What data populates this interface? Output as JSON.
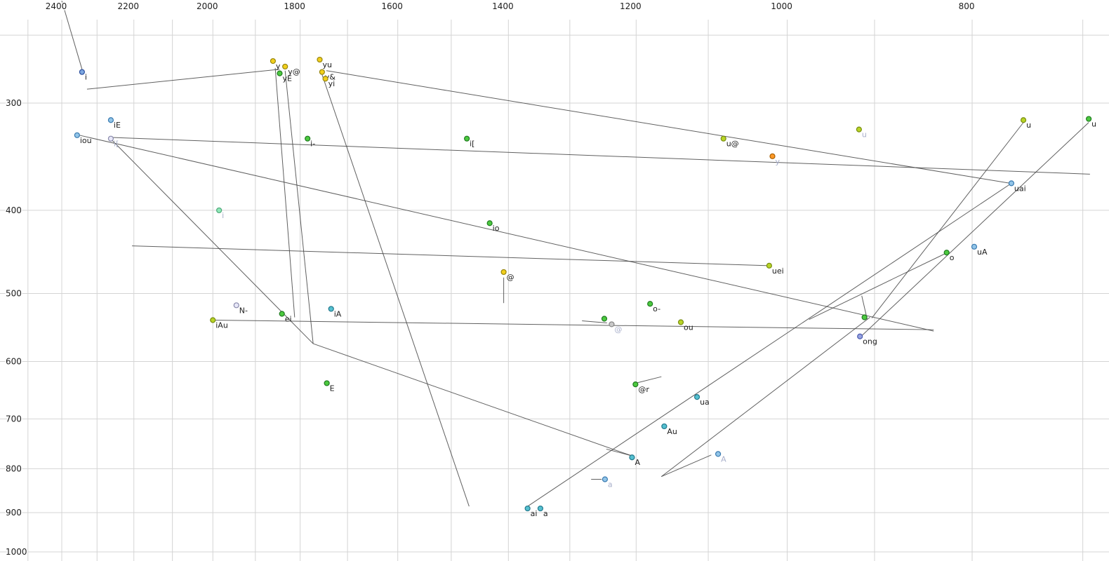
{
  "chart_data": {
    "type": "scatter",
    "title": "",
    "xlabel": "",
    "ylabel": "",
    "x_axis": {
      "scale": "log",
      "reversed": true,
      "tick_labels": [
        2400,
        2200,
        2000,
        1800,
        1600,
        1400,
        1200,
        1000,
        800
      ],
      "gridlines": [
        2500,
        2400,
        2300,
        2200,
        2100,
        2000,
        1900,
        1800,
        1700,
        1600,
        1500,
        1400,
        1300,
        1200,
        1100,
        1000,
        900,
        800,
        700
      ]
    },
    "y_axis": {
      "scale": "log",
      "reversed": false,
      "tick_labels": [
        300,
        400,
        500,
        600,
        700,
        800,
        900,
        1000
      ],
      "gridlines": [
        250,
        300,
        400,
        500,
        600,
        700,
        800,
        900,
        1000
      ]
    },
    "grid": true,
    "legend": "none",
    "points": [
      {
        "label": "i",
        "f2": 2342,
        "f1": 276,
        "color": "blue",
        "faded": false
      },
      {
        "label": "y",
        "f2": 1860,
        "f1": 268,
        "color": "yellow",
        "faded": false
      },
      {
        "label": "y@",
        "f2": 1833,
        "f1": 272,
        "color": "yellow",
        "faded": false
      },
      {
        "label": "yE",
        "f2": 1845,
        "f1": 277,
        "color": "green",
        "faded": false
      },
      {
        "label": "yu",
        "f2": 1758,
        "f1": 267,
        "color": "yellow",
        "faded": false
      },
      {
        "label": "y&",
        "f2": 1753,
        "f1": 276,
        "color": "yellow",
        "faded": false
      },
      {
        "label": "yi",
        "f2": 1746,
        "f1": 281,
        "color": "yellow",
        "faded": false
      },
      {
        "label": "iE",
        "f2": 2262,
        "f1": 314,
        "color": "lightblue",
        "faded": false
      },
      {
        "label": "iou",
        "f2": 2356,
        "f1": 327,
        "color": "lightblue",
        "faded": false
      },
      {
        "label": "i[",
        "f2": 2262,
        "f1": 330,
        "color": "palewhite",
        "faded": true
      },
      {
        "label": "i-",
        "f2": 1784,
        "f1": 330,
        "color": "green",
        "faded": false
      },
      {
        "label": "i[",
        "f2": 1472,
        "f1": 330,
        "color": "green",
        "faded": false
      },
      {
        "label": "u@",
        "f2": 1080,
        "f1": 330,
        "color": "yellowgreen",
        "faded": false
      },
      {
        "label": "y",
        "f2": 1018,
        "f1": 346,
        "color": "orange",
        "faded": true
      },
      {
        "label": "u",
        "f2": 917,
        "f1": 322,
        "color": "yellowgreen",
        "faded": true
      },
      {
        "label": "u",
        "f2": 752,
        "f1": 314,
        "color": "yellowgreen",
        "faded": false
      },
      {
        "label": "u",
        "f2": 695,
        "f1": 313,
        "color": "green",
        "faded": false
      },
      {
        "label": "uai",
        "f2": 763,
        "f1": 372,
        "color": "lightblue",
        "faded": false
      },
      {
        "label": "i",
        "f2": 1985,
        "f1": 400,
        "color": "palegreen",
        "faded": true
      },
      {
        "label": "io",
        "f2": 1432,
        "f1": 414,
        "color": "green",
        "faded": false
      },
      {
        "label": "@",
        "f2": 1408,
        "f1": 472,
        "color": "yellow",
        "faded": false
      },
      {
        "label": "uei",
        "f2": 1022,
        "f1": 464,
        "color": "yellowgreen",
        "faded": false
      },
      {
        "label": "o",
        "f2": 825,
        "f1": 448,
        "color": "green",
        "faded": false
      },
      {
        "label": "uA",
        "f2": 798,
        "f1": 441,
        "color": "lightblue",
        "faded": false
      },
      {
        "label": "N-",
        "f2": 1944,
        "f1": 516,
        "color": "palewhite",
        "faded": false
      },
      {
        "label": "iA",
        "f2": 1734,
        "f1": 521,
        "color": "cyan",
        "faded": false
      },
      {
        "label": "ei",
        "f2": 1840,
        "f1": 528,
        "color": "green",
        "faded": false
      },
      {
        "label": "iAu",
        "f2": 2000,
        "f1": 537,
        "color": "yellowgreen",
        "faded": false
      },
      {
        "label": "",
        "f2": 1247,
        "f1": 535,
        "color": "green",
        "faded": false
      },
      {
        "label": "@",
        "f2": 1236,
        "f1": 543,
        "color": "gray",
        "faded": true
      },
      {
        "label": "ou",
        "f2": 1137,
        "f1": 540,
        "color": "yellowgreen",
        "faded": false
      },
      {
        "label": "",
        "f2": 911,
        "f1": 533,
        "color": "green",
        "faded": false
      },
      {
        "label": "ong",
        "f2": 916,
        "f1": 561,
        "color": "periwinkle",
        "faded": false
      },
      {
        "label": "E",
        "f2": 1743,
        "f1": 636,
        "color": "green",
        "faded": false
      },
      {
        "label": "o-",
        "f2": 1180,
        "f1": 514,
        "color": "green",
        "faded": false
      },
      {
        "label": "@r",
        "f2": 1201,
        "f1": 638,
        "color": "green",
        "faded": false
      },
      {
        "label": "ua",
        "f2": 1115,
        "f1": 660,
        "color": "cyan",
        "faded": false
      },
      {
        "label": "Au",
        "f2": 1160,
        "f1": 714,
        "color": "cyan",
        "faded": false
      },
      {
        "label": "A",
        "f2": 1206,
        "f1": 776,
        "color": "cyan",
        "faded": false
      },
      {
        "label": "A",
        "f2": 1087,
        "f1": 769,
        "color": "lightblue",
        "faded": true
      },
      {
        "label": "a",
        "f2": 1246,
        "f1": 823,
        "color": "lightblue",
        "faded": true
      },
      {
        "label": "ai",
        "f2": 1368,
        "f1": 890,
        "color": "cyan",
        "faded": false
      },
      {
        "label": "a",
        "f2": 1347,
        "f1": 890,
        "color": "cyan",
        "faded": false
      }
    ],
    "segments": [
      {
        "a": [
          2400,
          228
        ],
        "b": [
          2342,
          274
        ]
      },
      {
        "a": [
          2328,
          289
        ],
        "b": [
          1845,
          274
        ]
      },
      {
        "a": [
          1855,
          273
        ],
        "b": [
          1812,
          533
        ]
      },
      {
        "a": [
          1833,
          275
        ],
        "b": [
          1772,
          572
        ]
      },
      {
        "a": [
          1753,
          278
        ],
        "b": [
          1468,
          885
        ]
      },
      {
        "a": [
          1744,
          275
        ],
        "b": [
          764,
          372
        ]
      },
      {
        "a": [
          2350,
          327
        ],
        "b": [
          838,
          553
        ]
      },
      {
        "a": [
          2260,
          329
        ],
        "b": [
          694,
          363
        ]
      },
      {
        "a": [
          2205,
          440
        ],
        "b": [
          1022,
          464
        ]
      },
      {
        "a": [
          1772,
          572
        ],
        "b": [
          1206,
          773
        ]
      },
      {
        "a": [
          2000,
          537
        ],
        "b": [
          838,
          551
        ]
      },
      {
        "a": [
          2260,
          331
        ],
        "b": [
          1772,
          572
        ]
      },
      {
        "a": [
          695,
          316
        ],
        "b": [
          914,
          560
        ]
      },
      {
        "a": [
          752,
          316
        ],
        "b": [
          903,
          534
        ]
      },
      {
        "a": [
          763,
          372
        ],
        "b": [
          1368,
          885
        ]
      },
      {
        "a": [
          905,
          533
        ],
        "b": [
          1164,
          817
        ]
      },
      {
        "a": [
          1408,
          479
        ],
        "b": [
          1408,
          513
        ]
      },
      {
        "a": [
          1281,
          538
        ],
        "b": [
          1243,
          541
        ]
      },
      {
        "a": [
          1267,
          823
        ],
        "b": [
          1251,
          823
        ]
      },
      {
        "a": [
          1164,
          817
        ],
        "b": [
          1096,
          771
        ]
      },
      {
        "a": [
          1201,
          636
        ],
        "b": [
          1164,
          625
        ]
      },
      {
        "a": [
          914,
          503
        ],
        "b": [
          908,
          536
        ]
      },
      {
        "a": [
          1244,
          759
        ],
        "b": [
          1208,
          772
        ]
      },
      {
        "a": [
          974,
          536
        ],
        "b": [
          826,
          449
        ]
      }
    ]
  },
  "colors": {
    "background": "#ffffff",
    "grid": "#d4d4d4",
    "segment": "#454545",
    "axis_label": "#1c1c1c",
    "point_label": "#1c1c1c",
    "point_label_faded": "#a9b0cb",
    "palette": {
      "yellow": {
        "fill": "#f2cf1d",
        "stroke": "#96850e"
      },
      "green": {
        "fill": "#4cc93f",
        "stroke": "#1f7a1f"
      },
      "yellowgreen": {
        "fill": "#b8d426",
        "stroke": "#788d10"
      },
      "lightblue": {
        "fill": "#92c5e8",
        "stroke": "#3a7ab0"
      },
      "blue": {
        "fill": "#7da7e0",
        "stroke": "#2c4f9e"
      },
      "periwinkle": {
        "fill": "#97a3e0",
        "stroke": "#4a5ab0"
      },
      "cyan": {
        "fill": "#55c0d0",
        "stroke": "#22788c"
      },
      "orange": {
        "fill": "#fd9827",
        "stroke": "#a85f00"
      },
      "palegreen": {
        "fill": "#90e8b8",
        "stroke": "#4ea87a"
      },
      "palewhite": {
        "fill": "#e8e8f8",
        "stroke": "#8a8aac"
      },
      "gray": {
        "fill": "#c8c8c8",
        "stroke": "#848484"
      }
    }
  }
}
